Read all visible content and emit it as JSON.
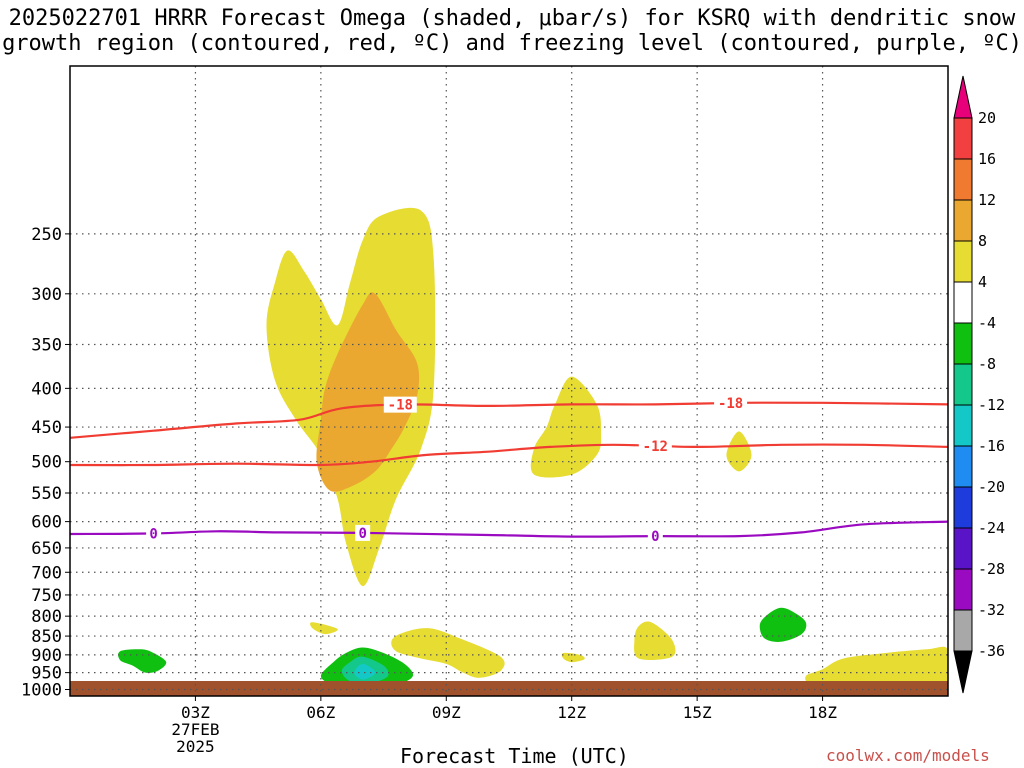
{
  "title": {
    "line1": "2025022701 HRRR Forecast Omega (shaded, μbar/s) for KSRQ with dendritic snow",
    "line2": "growth region (contoured, red, ºC) and freezing level (contoured, purple, ºC)"
  },
  "credit": "coolwx.com/models",
  "chart_data": {
    "type": "time-height cross section",
    "xlabel": "Forecast Time (UTC)",
    "ylabel": "",
    "x_range_hours_utc": [
      0.0,
      21.0
    ],
    "y_range_hpa": [
      1020,
      150
    ],
    "y_scale": "log-pressure",
    "grid": true,
    "x_ticks": [
      {
        "hour": 3,
        "label": "03Z",
        "sublabels": [
          "27FEB",
          "2025"
        ]
      },
      {
        "hour": 6,
        "label": "06Z"
      },
      {
        "hour": 9,
        "label": "09Z"
      },
      {
        "hour": 12,
        "label": "12Z"
      },
      {
        "hour": 15,
        "label": "15Z"
      },
      {
        "hour": 18,
        "label": "18Z"
      }
    ],
    "y_ticks": [
      250,
      300,
      350,
      400,
      450,
      500,
      550,
      600,
      650,
      700,
      750,
      800,
      850,
      900,
      950,
      1000
    ],
    "ground_color": "#a0522d",
    "colorbar": {
      "labels": [
        "20",
        "16",
        "12",
        "8",
        "4",
        "-4",
        "-8",
        "-12",
        "-16",
        "-20",
        "-24",
        "-28",
        "-32",
        "-36"
      ],
      "colors": [
        "#e8007a",
        "#f24040",
        "#f07a30",
        "#eaa830",
        "#e6dc32",
        "#ffffff",
        "#10c010",
        "#14c88c",
        "#14c8c8",
        "#1e8cf0",
        "#1e3cdc",
        "#5a14c8",
        "#9a0ac0",
        "#a8a8a8",
        "#000000"
      ]
    },
    "contours": [
      {
        "name": "-18",
        "color": "#f03c32",
        "label_hours": [
          7.9,
          15.8
        ],
        "points": [
          [
            0.0,
            465
          ],
          [
            2,
            455
          ],
          [
            4,
            445
          ],
          [
            5.5,
            440
          ],
          [
            6.5,
            425
          ],
          [
            8,
            420
          ],
          [
            10,
            422
          ],
          [
            12,
            420
          ],
          [
            14,
            420
          ],
          [
            16,
            418
          ],
          [
            18,
            418
          ],
          [
            21,
            420
          ]
        ]
      },
      {
        "name": "-12",
        "color": "#f03c32",
        "label_hours": [
          14.0
        ],
        "points": [
          [
            0.0,
            505
          ],
          [
            2,
            505
          ],
          [
            4,
            503
          ],
          [
            6,
            505
          ],
          [
            7.2,
            500
          ],
          [
            8.5,
            490
          ],
          [
            10,
            485
          ],
          [
            11.5,
            478
          ],
          [
            13,
            475
          ],
          [
            15,
            478
          ],
          [
            17,
            475
          ],
          [
            19,
            475
          ],
          [
            21,
            478
          ]
        ]
      },
      {
        "name": "0",
        "color": "#9a0ac0",
        "label_hours": [
          2.0,
          7.0,
          14.0
        ],
        "points": [
          [
            0.0,
            623
          ],
          [
            2,
            622
          ],
          [
            3.5,
            618
          ],
          [
            5,
            620
          ],
          [
            7,
            621
          ],
          [
            10,
            625
          ],
          [
            12,
            628
          ],
          [
            14,
            627
          ],
          [
            16,
            627
          ],
          [
            17.5,
            620
          ],
          [
            19,
            605
          ],
          [
            21,
            600
          ]
        ]
      }
    ],
    "shaded_areas": [
      {
        "value": 4,
        "color": "#e6dc32",
        "outline": [
          [
            5.2,
            263
          ],
          [
            5.6,
            280
          ],
          [
            6.0,
            305
          ],
          [
            6.4,
            330
          ],
          [
            6.7,
            290
          ],
          [
            7.0,
            255
          ],
          [
            7.4,
            237
          ],
          [
            8.4,
            233
          ],
          [
            8.7,
            270
          ],
          [
            8.7,
            400
          ],
          [
            8.4,
            480
          ],
          [
            7.8,
            560
          ],
          [
            7.4,
            650
          ],
          [
            7.0,
            730
          ],
          [
            6.6,
            640
          ],
          [
            6.4,
            560
          ],
          [
            6.0,
            490
          ],
          [
            5.4,
            440
          ],
          [
            4.9,
            390
          ],
          [
            4.7,
            330
          ],
          [
            4.9,
            290
          ]
        ]
      },
      {
        "value": 8,
        "color": "#eaa830",
        "outline": [
          [
            7.0,
            310
          ],
          [
            7.3,
            300
          ],
          [
            7.8,
            335
          ],
          [
            8.3,
            370
          ],
          [
            8.3,
            410
          ],
          [
            8.0,
            450
          ],
          [
            7.7,
            480
          ],
          [
            7.3,
            515
          ],
          [
            6.7,
            540
          ],
          [
            6.2,
            545
          ],
          [
            5.9,
            500
          ],
          [
            6.0,
            440
          ],
          [
            6.1,
            400
          ],
          [
            6.4,
            360
          ]
        ]
      },
      {
        "value": 4,
        "color": "#e6dc32",
        "outline": [
          [
            12.0,
            386
          ],
          [
            12.6,
            420
          ],
          [
            12.7,
            460
          ],
          [
            12.6,
            490
          ],
          [
            12.0,
            520
          ],
          [
            11.1,
            520
          ],
          [
            11.1,
            480
          ],
          [
            11.4,
            450
          ],
          [
            11.6,
            420
          ]
        ]
      },
      {
        "value": 4,
        "color": "#e6dc32",
        "outline": [
          [
            16.0,
            456
          ],
          [
            16.3,
            490
          ],
          [
            16.0,
            515
          ],
          [
            15.7,
            490
          ]
        ]
      },
      {
        "value": 4,
        "color": "#e6dc32",
        "outline": [
          [
            5.8,
            815
          ],
          [
            6.4,
            832
          ],
          [
            6.1,
            845
          ],
          [
            5.8,
            830
          ]
        ]
      },
      {
        "value": 4,
        "color": "#e6dc32",
        "outline": [
          [
            8.0,
            840
          ],
          [
            8.6,
            830
          ],
          [
            9.3,
            855
          ],
          [
            10.3,
            905
          ],
          [
            10.3,
            945
          ],
          [
            9.8,
            965
          ],
          [
            9.4,
            950
          ],
          [
            9.0,
            925
          ],
          [
            8.4,
            910
          ],
          [
            7.8,
            890
          ],
          [
            7.7,
            860
          ]
        ]
      },
      {
        "value": 4,
        "color": "#e6dc32",
        "outline": [
          [
            11.8,
            895
          ],
          [
            12.2,
            900
          ],
          [
            12.3,
            912
          ],
          [
            12.0,
            920
          ],
          [
            11.8,
            910
          ]
        ]
      },
      {
        "value": 4,
        "color": "#e6dc32",
        "outline": [
          [
            13.6,
            825
          ],
          [
            13.9,
            815
          ],
          [
            14.4,
            860
          ],
          [
            14.4,
            905
          ],
          [
            13.6,
            910
          ],
          [
            13.5,
            860
          ]
        ]
      },
      {
        "value": 4,
        "color": "#e6dc32",
        "outline": [
          [
            18.5,
            910
          ],
          [
            19.5,
            895
          ],
          [
            20.5,
            885
          ],
          [
            21.0,
            885
          ],
          [
            21.0,
            975
          ],
          [
            19.0,
            975
          ],
          [
            17.8,
            985
          ],
          [
            17.6,
            960
          ],
          [
            18.0,
            940
          ]
        ]
      },
      {
        "value": -4,
        "color": "#10c010",
        "outline": [
          [
            1.2,
            890
          ],
          [
            1.7,
            885
          ],
          [
            2.0,
            895
          ],
          [
            2.3,
            920
          ],
          [
            2.1,
            945
          ],
          [
            1.8,
            950
          ],
          [
            1.5,
            930
          ],
          [
            1.2,
            915
          ]
        ]
      },
      {
        "value": -4,
        "color": "#10c010",
        "outline": [
          [
            7.0,
            880
          ],
          [
            7.5,
            895
          ],
          [
            8.0,
            925
          ],
          [
            8.2,
            960
          ],
          [
            7.8,
            985
          ],
          [
            7.0,
            992
          ],
          [
            6.3,
            985
          ],
          [
            6.0,
            960
          ],
          [
            6.3,
            920
          ],
          [
            6.6,
            895
          ]
        ]
      },
      {
        "value": -8,
        "color": "#14c88c",
        "outline": [
          [
            7.0,
            905
          ],
          [
            7.5,
            930
          ],
          [
            7.6,
            960
          ],
          [
            7.2,
            980
          ],
          [
            6.7,
            975
          ],
          [
            6.5,
            945
          ],
          [
            6.7,
            920
          ]
        ]
      },
      {
        "value": -12,
        "color": "#14c8c8",
        "outline": [
          [
            7.0,
            925
          ],
          [
            7.3,
            950
          ],
          [
            7.0,
            970
          ],
          [
            6.8,
            950
          ]
        ]
      },
      {
        "value": -4,
        "color": "#10c010",
        "outline": [
          [
            17.0,
            780
          ],
          [
            17.3,
            790
          ],
          [
            17.6,
            815
          ],
          [
            17.5,
            845
          ],
          [
            17.0,
            865
          ],
          [
            16.6,
            855
          ],
          [
            16.5,
            820
          ],
          [
            16.7,
            795
          ]
        ]
      }
    ]
  }
}
